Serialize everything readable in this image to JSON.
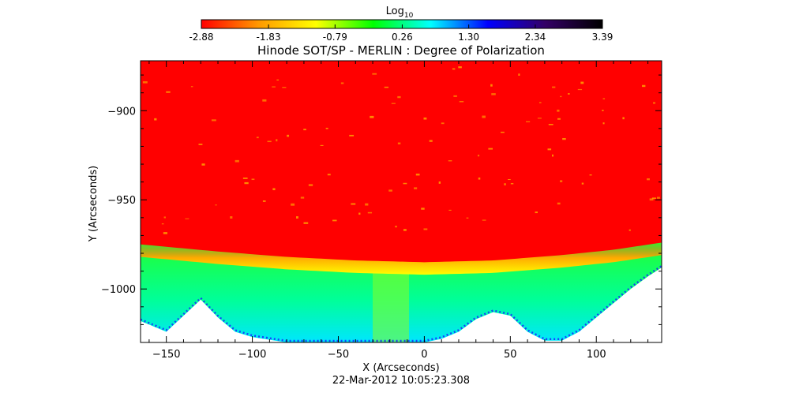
{
  "chart_data": {
    "type": "heatmap",
    "title": "Hinode SOT/SP - MERLIN : Degree of Polarization",
    "xlabel": "X (Arcseconds)",
    "ylabel": "Y (Arcseconds)",
    "timestamp": "22-Mar-2012 10:05:23.308",
    "xlim": [
      -165,
      138
    ],
    "ylim": [
      -1030,
      -872
    ],
    "x_ticks": [
      -150,
      -100,
      -50,
      0,
      50,
      100
    ],
    "y_ticks": [
      -900,
      -950,
      -1000
    ],
    "colorbar": {
      "label_base": "Log",
      "label_sub": "10",
      "range": [
        -2.88,
        3.39
      ],
      "tick_values": [
        -2.88,
        -1.83,
        -0.79,
        0.26,
        1.3,
        2.34,
        3.39
      ],
      "tick_labels": [
        "-2.88",
        "-1.83",
        "-0.79",
        "0.26",
        "1.30",
        "2.34",
        "3.39"
      ],
      "colors": [
        "#ff0000",
        "#ff9900",
        "#ffff00",
        "#00ff00",
        "#00ffff",
        "#0000ff",
        "#330066",
        "#000000"
      ]
    },
    "limb_boundary": {
      "description": "edge of red on-disk region (y in arcsec at given x)",
      "x": [
        -165,
        -120,
        -80,
        -40,
        0,
        40,
        80,
        110,
        138
      ],
      "y": [
        -975,
        -979,
        -982,
        -984,
        -985,
        -984,
        -981,
        -978,
        -974
      ]
    },
    "white_region_edge": {
      "description": "lower boundary of off-limb data (white below)",
      "x": [
        -165,
        -150,
        -140,
        -130,
        -120,
        -110,
        -100,
        -80,
        -60,
        -40,
        -30,
        -10,
        0,
        10,
        20,
        30,
        40,
        50,
        60,
        70,
        80,
        90,
        100,
        110,
        120,
        130,
        138
      ],
      "y": [
        -1018,
        -1024,
        -1015,
        -1006,
        -1016,
        -1024,
        -1027,
        -1030,
        -1030,
        -1030,
        -1030,
        -1030,
        -1030,
        -1028,
        -1024,
        -1017,
        -1013,
        -1015,
        -1024,
        -1029,
        -1029,
        -1024,
        -1016,
        -1008,
        -1000,
        -993,
        -988
      ]
    }
  }
}
